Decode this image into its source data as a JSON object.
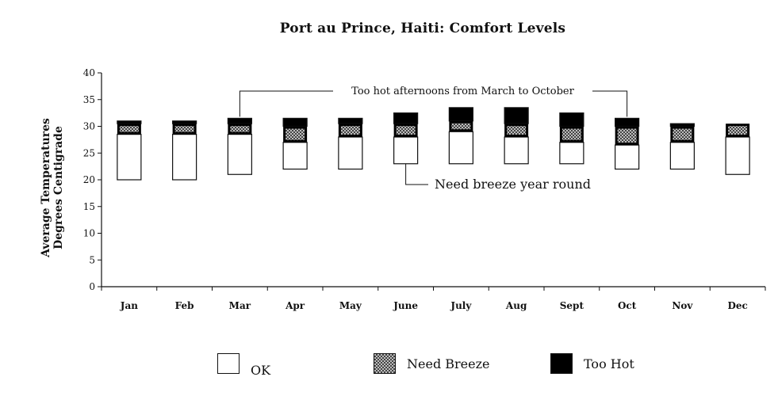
{
  "chart_data": {
    "type": "bar",
    "title": "Port au Prince, Haiti:  Comfort Levels",
    "ylabel_lines": [
      "Average Temperatures",
      "Degrees Centigrade"
    ],
    "xlabel": "",
    "ylim": [
      0,
      40
    ],
    "yticks": [
      0,
      5,
      10,
      15,
      20,
      25,
      30,
      35,
      40
    ],
    "grid": false,
    "categories": [
      "Jan",
      "Feb",
      "Mar",
      "Apr",
      "May",
      "June",
      "July",
      "Aug",
      "Sept",
      "Oct",
      "Nov",
      "Dec"
    ],
    "ranges": [
      {
        "ok": [
          20,
          28.5
        ],
        "need_breeze": [
          28.5,
          30.5
        ],
        "too_hot": [
          30.5,
          31
        ]
      },
      {
        "ok": [
          20,
          28.5
        ],
        "need_breeze": [
          28.5,
          30.5
        ],
        "too_hot": [
          30.5,
          31
        ]
      },
      {
        "ok": [
          21,
          28.5
        ],
        "need_breeze": [
          28.5,
          30.5
        ],
        "too_hot": [
          30.5,
          31.5
        ]
      },
      {
        "ok": [
          22,
          27
        ],
        "need_breeze": [
          27,
          30
        ],
        "too_hot": [
          30,
          31.5
        ]
      },
      {
        "ok": [
          22,
          28
        ],
        "need_breeze": [
          28,
          30.5
        ],
        "too_hot": [
          30.5,
          31.5
        ]
      },
      {
        "ok": [
          23,
          28
        ],
        "need_breeze": [
          28,
          30.5
        ],
        "too_hot": [
          30.5,
          32.5
        ]
      },
      {
        "ok": [
          23,
          29
        ],
        "need_breeze": [
          29,
          31
        ],
        "too_hot": [
          31,
          33.5
        ]
      },
      {
        "ok": [
          23,
          28
        ],
        "need_breeze": [
          28,
          30.5
        ],
        "too_hot": [
          30.5,
          33.5
        ]
      },
      {
        "ok": [
          23,
          27
        ],
        "need_breeze": [
          27,
          30
        ],
        "too_hot": [
          30,
          32.5
        ]
      },
      {
        "ok": [
          22,
          26.5
        ],
        "need_breeze": [
          26.5,
          30
        ],
        "too_hot": [
          30,
          31.5
        ]
      },
      {
        "ok": [
          22,
          27
        ],
        "need_breeze": [
          27,
          30
        ],
        "too_hot": [
          30,
          30.5
        ]
      },
      {
        "ok": [
          21,
          28
        ],
        "need_breeze": [
          28,
          30.5
        ],
        "too_hot": [
          30.5,
          30.5
        ]
      }
    ],
    "legend": {
      "position": "bottom",
      "items": [
        {
          "label": "OK",
          "fill": "white"
        },
        {
          "label": "Need Breeze",
          "fill": "checker"
        },
        {
          "label": "Too Hot",
          "fill": "black"
        }
      ]
    },
    "annotations": [
      {
        "text": "Too hot afternoons from March to October",
        "from": "Mar",
        "to": "Oct"
      },
      {
        "text": "Need breeze year round",
        "from": "June"
      }
    ],
    "colors": {
      "ok": "#ffffff",
      "too_hot": "#000000",
      "checker_dark": "#444444",
      "checker_light": "#bdbdbd"
    }
  }
}
